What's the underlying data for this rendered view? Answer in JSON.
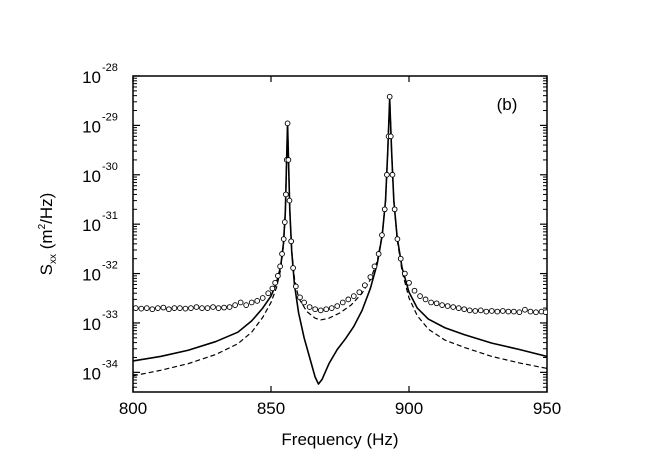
{
  "chart_data": {
    "type": "line",
    "title": "",
    "annotation": "(b)",
    "xlabel": "Frequency (Hz)",
    "ylabel": {
      "base": "S",
      "subscript": "xx",
      "open": " (m",
      "superscript": "2",
      "close": "/Hz)"
    },
    "x_scale": "linear",
    "y_scale": "log",
    "xlim": [
      800,
      950
    ],
    "ylim": [
      4e-35,
      1e-28
    ],
    "x_ticks": [
      {
        "value": 800,
        "label": "800"
      },
      {
        "value": 850,
        "label": "850"
      },
      {
        "value": 900,
        "label": "900"
      },
      {
        "value": 950,
        "label": "950"
      }
    ],
    "y_ticks": [
      {
        "value": 1e-34,
        "base": "10",
        "exp": "-34"
      },
      {
        "value": 1e-33,
        "base": "10",
        "exp": "-33"
      },
      {
        "value": 1e-32,
        "base": "10",
        "exp": "-32"
      },
      {
        "value": 1e-31,
        "base": "10",
        "exp": "-31"
      },
      {
        "value": 1e-30,
        "base": "10",
        "exp": "-30"
      },
      {
        "value": 1e-29,
        "base": "10",
        "exp": "-29"
      },
      {
        "value": 1e-28,
        "base": "10",
        "exp": "-28"
      }
    ],
    "grid": false,
    "legend": "none",
    "series": [
      {
        "style": "solid",
        "color": "#000000",
        "points": [
          [
            800,
            1.7e-34
          ],
          [
            810,
            2.1e-34
          ],
          [
            820,
            2.8e-34
          ],
          [
            830,
            4.2e-34
          ],
          [
            838,
            6.5e-34
          ],
          [
            843,
            1.1e-33
          ],
          [
            847,
            2e-33
          ],
          [
            850,
            3.5e-33
          ],
          [
            852,
            6.5e-33
          ],
          [
            853.5,
            1.4e-32
          ],
          [
            854.5,
            4e-32
          ],
          [
            855.2,
            1.8e-31
          ],
          [
            855.6,
            1.5e-30
          ],
          [
            856,
            1.1e-29
          ],
          [
            856.4,
            1.5e-30
          ],
          [
            856.8,
            2e-31
          ],
          [
            857.5,
            2.8e-32
          ],
          [
            858.5,
            6e-33
          ],
          [
            860,
            1.6e-33
          ],
          [
            862,
            5e-34
          ],
          [
            864,
            2e-34
          ],
          [
            866,
            8e-35
          ],
          [
            867.2,
            5.8e-35
          ],
          [
            868.5,
            7.2e-35
          ],
          [
            871,
            1.5e-34
          ],
          [
            874,
            2.9e-34
          ],
          [
            877,
            4.8e-34
          ],
          [
            880,
            8.5e-34
          ],
          [
            883,
            1.8e-33
          ],
          [
            886,
            5e-33
          ],
          [
            888.5,
            1.6e-32
          ],
          [
            890.3,
            6e-32
          ],
          [
            891.5,
            3e-31
          ],
          [
            892.3,
            3e-30
          ],
          [
            893,
            3.5e-29
          ],
          [
            893.7,
            3e-30
          ],
          [
            894.5,
            3e-31
          ],
          [
            895.7,
            5.5e-32
          ],
          [
            897.5,
            1.3e-32
          ],
          [
            900,
            4.2e-33
          ],
          [
            903,
            2e-33
          ],
          [
            907,
            1.2e-33
          ],
          [
            913,
            8e-34
          ],
          [
            920,
            5.8e-34
          ],
          [
            930,
            3.9e-34
          ],
          [
            940,
            2.9e-34
          ],
          [
            950,
            2.1e-34
          ]
        ]
      },
      {
        "style": "dashed",
        "color": "#000000",
        "points": [
          [
            800,
            8.5e-35
          ],
          [
            810,
            1.1e-34
          ],
          [
            820,
            1.5e-34
          ],
          [
            830,
            2.3e-34
          ],
          [
            838,
            3.8e-34
          ],
          [
            843,
            6.5e-34
          ],
          [
            847,
            1.3e-33
          ],
          [
            850,
            2.6e-33
          ],
          [
            852,
            5.2e-33
          ],
          [
            853.5,
            1.2e-32
          ],
          [
            854.5,
            3.6e-32
          ],
          [
            855.2,
            1.7e-31
          ],
          [
            855.6,
            1.5e-30
          ],
          [
            856,
            1.1e-29
          ],
          [
            856.4,
            1.5e-30
          ],
          [
            856.8,
            2e-31
          ],
          [
            857.5,
            3e-32
          ],
          [
            858.5,
            8e-33
          ],
          [
            860,
            3.2e-33
          ],
          [
            863,
            1.7e-33
          ],
          [
            866,
            1.25e-33
          ],
          [
            868,
            1.15e-33
          ],
          [
            871,
            1.25e-33
          ],
          [
            875,
            1.6e-33
          ],
          [
            879,
            2.3e-33
          ],
          [
            883,
            4e-33
          ],
          [
            886,
            7.5e-33
          ],
          [
            888.5,
            1.8e-32
          ],
          [
            890.3,
            6.2e-32
          ],
          [
            891.5,
            3e-31
          ],
          [
            892.3,
            3e-30
          ],
          [
            893,
            3.5e-29
          ],
          [
            893.7,
            3e-30
          ],
          [
            894.5,
            3e-31
          ],
          [
            895.7,
            5e-32
          ],
          [
            897.5,
            1.1e-32
          ],
          [
            900,
            3.2e-33
          ],
          [
            903,
            1.4e-33
          ],
          [
            907,
            7.5e-34
          ],
          [
            913,
            4.5e-34
          ],
          [
            920,
            3.2e-34
          ],
          [
            930,
            2.1e-34
          ],
          [
            940,
            1.55e-34
          ],
          [
            950,
            1.2e-34
          ]
        ]
      }
    ],
    "markers": {
      "style": "open-circle",
      "color": "#000000",
      "points": [
        [
          801,
          2e-33
        ],
        [
          803,
          1.95e-33
        ],
        [
          805,
          2e-33
        ],
        [
          807,
          1.9e-33
        ],
        [
          809,
          2e-33
        ],
        [
          811,
          2.05e-33
        ],
        [
          813,
          1.9e-33
        ],
        [
          815,
          2e-33
        ],
        [
          817,
          2e-33
        ],
        [
          819,
          1.95e-33
        ],
        [
          821,
          2e-33
        ],
        [
          823,
          2.1e-33
        ],
        [
          825,
          2e-33
        ],
        [
          827,
          2e-33
        ],
        [
          829,
          2.1e-33
        ],
        [
          831,
          2e-33
        ],
        [
          833,
          2.05e-33
        ],
        [
          835,
          2.1e-33
        ],
        [
          837,
          2.3e-33
        ],
        [
          839,
          2.6e-33
        ],
        [
          841,
          2.3e-33
        ],
        [
          843,
          2.6e-33
        ],
        [
          845,
          2.8e-33
        ],
        [
          847,
          3.2e-33
        ],
        [
          849,
          4e-33
        ],
        [
          850.5,
          5e-33
        ],
        [
          851.5,
          6.5e-33
        ],
        [
          852.5,
          9e-33
        ],
        [
          853.3,
          1.4e-32
        ],
        [
          854,
          2.5e-32
        ],
        [
          854.6,
          5e-32
        ],
        [
          855,
          1.1e-31
        ],
        [
          855.4,
          4e-31
        ],
        [
          855.7,
          2e-30
        ],
        [
          856,
          1.1e-29
        ],
        [
          856.3,
          2e-30
        ],
        [
          856.7,
          3e-31
        ],
        [
          857.3,
          4.5e-32
        ],
        [
          858,
          1.3e-32
        ],
        [
          859,
          5.5e-33
        ],
        [
          860.5,
          3.3e-33
        ],
        [
          862,
          2.6e-33
        ],
        [
          864,
          2.1e-33
        ],
        [
          866,
          1.9e-33
        ],
        [
          868,
          1.8e-33
        ],
        [
          870,
          1.9e-33
        ],
        [
          872,
          2e-33
        ],
        [
          874,
          2.2e-33
        ],
        [
          876,
          2.6e-33
        ],
        [
          878,
          3e-33
        ],
        [
          880,
          3.5e-33
        ],
        [
          882,
          4.2e-33
        ],
        [
          884,
          5.8e-33
        ],
        [
          886,
          8.5e-33
        ],
        [
          887.5,
          1.4e-32
        ],
        [
          889,
          2.5e-32
        ],
        [
          890.2,
          6e-32
        ],
        [
          891.2,
          2e-31
        ],
        [
          892,
          1e-30
        ],
        [
          892.6,
          6e-30
        ],
        [
          893,
          3.8e-29
        ],
        [
          893.4,
          6e-30
        ],
        [
          894,
          1e-30
        ],
        [
          894.8,
          2e-31
        ],
        [
          895.8,
          5e-32
        ],
        [
          897,
          2e-32
        ],
        [
          898.5,
          1e-32
        ],
        [
          900,
          6.5e-33
        ],
        [
          902,
          4.5e-33
        ],
        [
          904,
          3.5e-33
        ],
        [
          906,
          3e-33
        ],
        [
          908,
          2.6e-33
        ],
        [
          910,
          2.5e-33
        ],
        [
          912,
          2.3e-33
        ],
        [
          914,
          2.2e-33
        ],
        [
          916,
          2.1e-33
        ],
        [
          918,
          2e-33
        ],
        [
          920,
          1.9e-33
        ],
        [
          922,
          1.8e-33
        ],
        [
          924,
          1.75e-33
        ],
        [
          926,
          1.8e-33
        ],
        [
          928,
          1.7e-33
        ],
        [
          930,
          1.75e-33
        ],
        [
          932,
          1.7e-33
        ],
        [
          934,
          1.75e-33
        ],
        [
          936,
          1.7e-33
        ],
        [
          938,
          1.7e-33
        ],
        [
          940,
          1.65e-33
        ],
        [
          942,
          1.85e-33
        ],
        [
          944,
          1.7e-33
        ],
        [
          946,
          1.65e-33
        ],
        [
          948,
          1.7e-33
        ],
        [
          949.5,
          1.65e-33
        ]
      ]
    }
  }
}
